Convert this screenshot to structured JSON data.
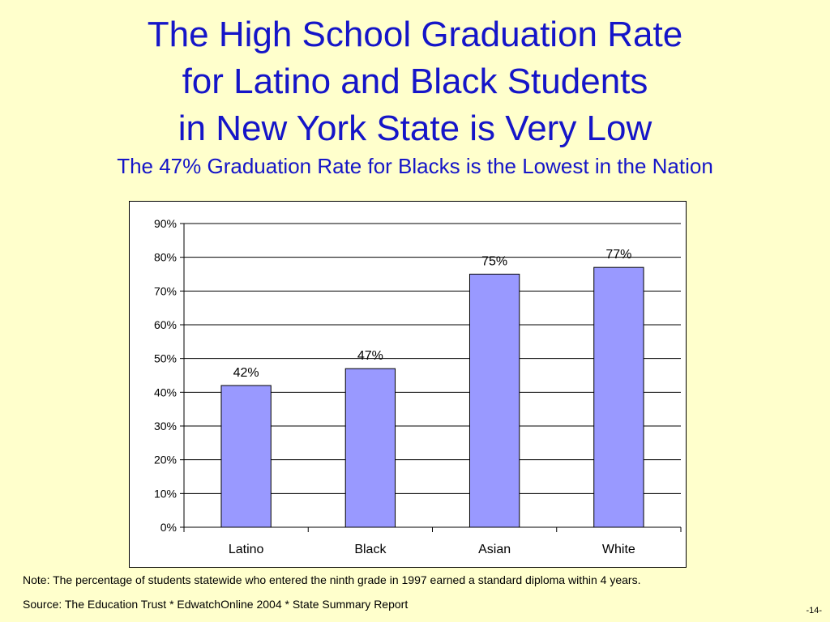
{
  "slide": {
    "title_lines": [
      "The High School Graduation Rate",
      "for Latino and Black Students",
      "in New York State is Very Low"
    ],
    "subtitle": "The 47% Graduation Rate for Blacks is the Lowest in the Nation",
    "note": "Note: The percentage of students statewide who entered the ninth grade in 1997 earned a standard diploma within 4 years.",
    "source": "Source: The Education Trust * EdwatchOnline 2004 * State Summary Report",
    "page_number": "-14-",
    "title_color": "#1515C8",
    "background_color": "#FFFFCC"
  },
  "chart_data": {
    "type": "bar",
    "categories": [
      "Latino",
      "Black",
      "Asian",
      "White"
    ],
    "values": [
      42,
      47,
      75,
      77
    ],
    "value_labels": [
      "42%",
      "47%",
      "75%",
      "77%"
    ],
    "ylim": [
      0,
      90
    ],
    "yticks": [
      0,
      10,
      20,
      30,
      40,
      50,
      60,
      70,
      80,
      90
    ],
    "ytick_labels": [
      "0%",
      "10%",
      "20%",
      "30%",
      "40%",
      "50%",
      "60%",
      "70%",
      "80%",
      "90%"
    ],
    "grid": true,
    "legend": "none",
    "bar_color": "#9999FF"
  }
}
